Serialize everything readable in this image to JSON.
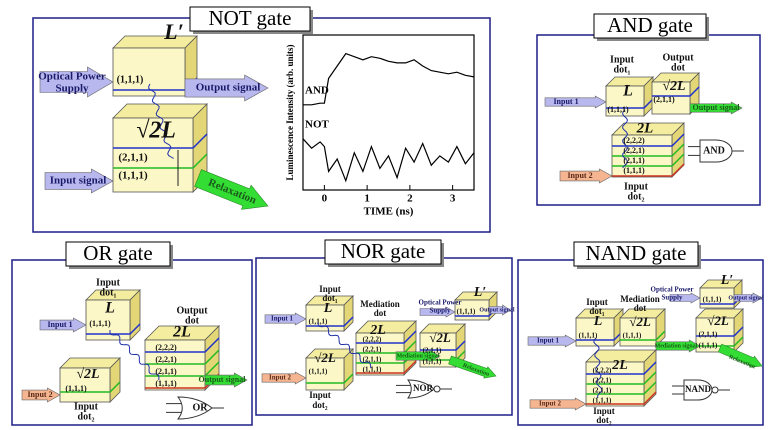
{
  "panels": [
    {
      "title": "NOT gate",
      "labels": [
        "L′",
        "(1,1,1)",
        "Optical Power",
        "Supply",
        "Output signal",
        "√2L",
        "(2,1,1)",
        "(1,1,1)",
        "Input signal",
        "Relaxation"
      ],
      "plot": {
        "y_label": "Luminescence Intensity (arb. units)",
        "x_label": "TIME (ns)",
        "xlim": [
          -0.5,
          3.5
        ],
        "ylim": [
          0,
          1
        ],
        "xticks": [
          0,
          1,
          2,
          3
        ],
        "x": [
          -0.5,
          -0.3,
          -0.1,
          0,
          0.1,
          0.3,
          0.5,
          0.7,
          0.9,
          1.1,
          1.3,
          1.5,
          1.7,
          1.9,
          2.1,
          2.3,
          2.5,
          2.7,
          2.9,
          3.1,
          3.3,
          3.5
        ],
        "series": [
          {
            "name": "AND",
            "values": [
              0.55,
              0.55,
              0.56,
              0.56,
              0.72,
              0.8,
              0.88,
              0.86,
              0.84,
              0.86,
              0.85,
              0.83,
              0.82,
              0.82,
              0.84,
              0.8,
              0.77,
              0.76,
              0.75,
              0.76,
              0.74,
              0.73
            ]
          },
          {
            "name": "NOT",
            "values": [
              0.33,
              0.27,
              0.31,
              0.28,
              0.12,
              0.2,
              0.06,
              0.24,
              0.12,
              0.28,
              0.14,
              0.22,
              0.08,
              0.27,
              0.18,
              0.3,
              0.16,
              0.22,
              0.18,
              0.28,
              0.17,
              0.24
            ]
          }
        ]
      }
    },
    {
      "title": "AND gate",
      "labels": [
        "Input",
        "dot₁",
        "L",
        "(1,1,1)",
        "Output",
        "dot",
        "√2L",
        "(2,1,1)",
        "Output signal",
        "Input 1",
        "2L",
        "(2,2,2)",
        "(2,2,1)",
        "(2,1,1)",
        "(1,1,1)",
        "Input 2",
        "Input",
        "dot₂",
        "AND"
      ]
    },
    {
      "title": "OR gate",
      "labels": [
        "Input",
        "dot₁",
        "L",
        "(1,1,1)",
        "Output",
        "dot",
        "2L",
        "(2,2,2)",
        "(2,2,1)",
        "(2,1,1)",
        "(1,1,1)",
        "√2L",
        "(1,1,1)",
        "Input 1",
        "Input 2",
        "Output signal",
        "Input",
        "dot₂",
        "OR"
      ]
    },
    {
      "title": "NOR gate",
      "labels": [
        "Input",
        "dot₁",
        "L",
        "(1,1,1)",
        "Mediation",
        "dot",
        "2L",
        "(2,2,2)",
        "(2,2,1)",
        "(2,1,1)",
        "(1,1,1)",
        "√2L",
        "(1,1,1)",
        "Input 1",
        "Input 2",
        "Input",
        "dot₂",
        "Optical Power",
        "Supply",
        "L′",
        "(1,1,1)",
        "Output signal",
        "√2L",
        "(2,1,1)",
        "(1,1,1)",
        "Mediation signal",
        "Relaxation",
        "NOR"
      ]
    },
    {
      "title": "NAND gate",
      "labels": [
        "Input",
        "dot₁",
        "L",
        "(1,1,1)",
        "Mediation",
        "dot",
        "√2L",
        "(1,1,1)",
        "Optical Power",
        "Supply",
        "L′",
        "(1,1,1)",
        "Output signal",
        "√2L",
        "(2,1,1)",
        "(1,1,1)",
        "Mediation signal",
        "Relaxation",
        "2L",
        "(2,2,2)",
        "(2,2,1)",
        "(2,1,1)",
        "(1,1,1)",
        "Input 1",
        "Input 2",
        "Input",
        "dot₂",
        "NAND"
      ]
    }
  ]
}
